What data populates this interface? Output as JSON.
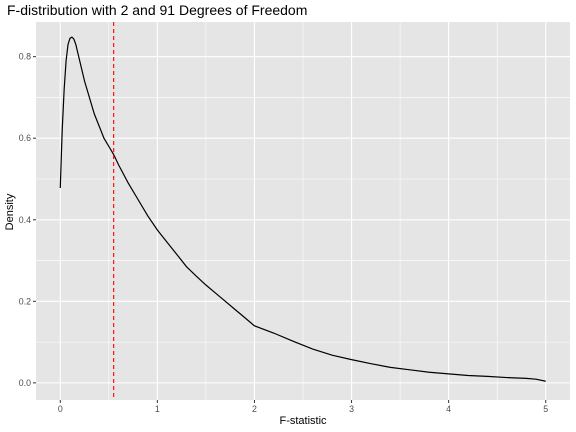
{
  "chart_data": {
    "type": "line",
    "title": "F-distribution with 2 and 91 Degrees of Freedom",
    "xlabel": "F-statistic",
    "ylabel": "Density",
    "xlim": [
      -0.25,
      5.25
    ],
    "ylim": [
      -0.042,
      0.885
    ],
    "x_ticks": [
      0,
      1,
      2,
      3,
      4,
      5
    ],
    "x_tick_labels": [
      "0",
      "1",
      "2",
      "3",
      "4",
      "5"
    ],
    "y_ticks": [
      0.0,
      0.2,
      0.4,
      0.6,
      0.8
    ],
    "y_tick_labels": [
      "0.0",
      "0.2",
      "0.4",
      "0.6",
      "0.8"
    ],
    "grid": true,
    "series": [
      {
        "x": [
          0.0,
          0.02,
          0.04,
          0.06,
          0.08,
          0.1,
          0.12,
          0.14,
          0.16,
          0.18,
          0.2,
          0.25,
          0.3,
          0.35,
          0.4,
          0.45,
          0.5,
          0.55,
          0.6,
          0.7,
          0.8,
          0.9,
          1.0,
          1.1,
          1.2,
          1.3,
          1.4,
          1.5,
          1.6,
          1.7,
          1.8,
          1.9,
          2.0,
          2.2,
          2.4,
          2.6,
          2.8,
          3.0,
          3.2,
          3.4,
          3.6,
          3.8,
          4.0,
          4.2,
          4.4,
          4.6,
          4.8,
          4.9,
          5.0
        ],
        "y": [
          0.478,
          0.62,
          0.72,
          0.79,
          0.83,
          0.845,
          0.848,
          0.843,
          0.83,
          0.81,
          0.79,
          0.74,
          0.7,
          0.66,
          0.63,
          0.6,
          0.58,
          0.56,
          0.535,
          0.49,
          0.45,
          0.41,
          0.375,
          0.345,
          0.315,
          0.285,
          0.262,
          0.24,
          0.22,
          0.2,
          0.18,
          0.16,
          0.14,
          0.122,
          0.102,
          0.083,
          0.068,
          0.057,
          0.047,
          0.038,
          0.032,
          0.026,
          0.022,
          0.018,
          0.016,
          0.013,
          0.011,
          0.009,
          0.004
        ],
        "color": "#000000"
      }
    ],
    "reference_line": {
      "x": 0.55,
      "color": "#ff0000",
      "style": "dashed"
    },
    "panel_background": "#e5e5e5",
    "grid_color": "#ffffff"
  }
}
